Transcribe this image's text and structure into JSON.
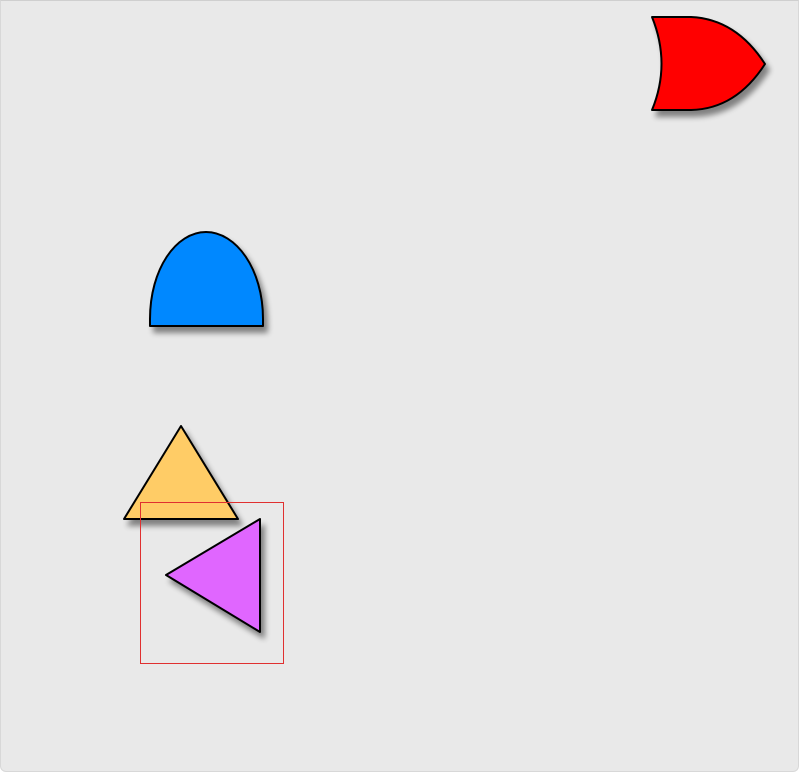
{
  "canvas": {
    "background": "#e9e9e9"
  },
  "shapes": [
    {
      "id": "red-or-gate-shape",
      "kind": "or-gate",
      "color": "#ff0000"
    },
    {
      "id": "blue-dome-shape",
      "kind": "dome",
      "color": "#0088ff"
    },
    {
      "id": "orange-triangle-shape",
      "kind": "triangle-up",
      "color": "#ffcc66"
    },
    {
      "id": "magenta-triangle-shape",
      "kind": "triangle-left",
      "color": "#e066ff",
      "selected": true
    }
  ],
  "selection": {
    "color": "#e03030"
  }
}
